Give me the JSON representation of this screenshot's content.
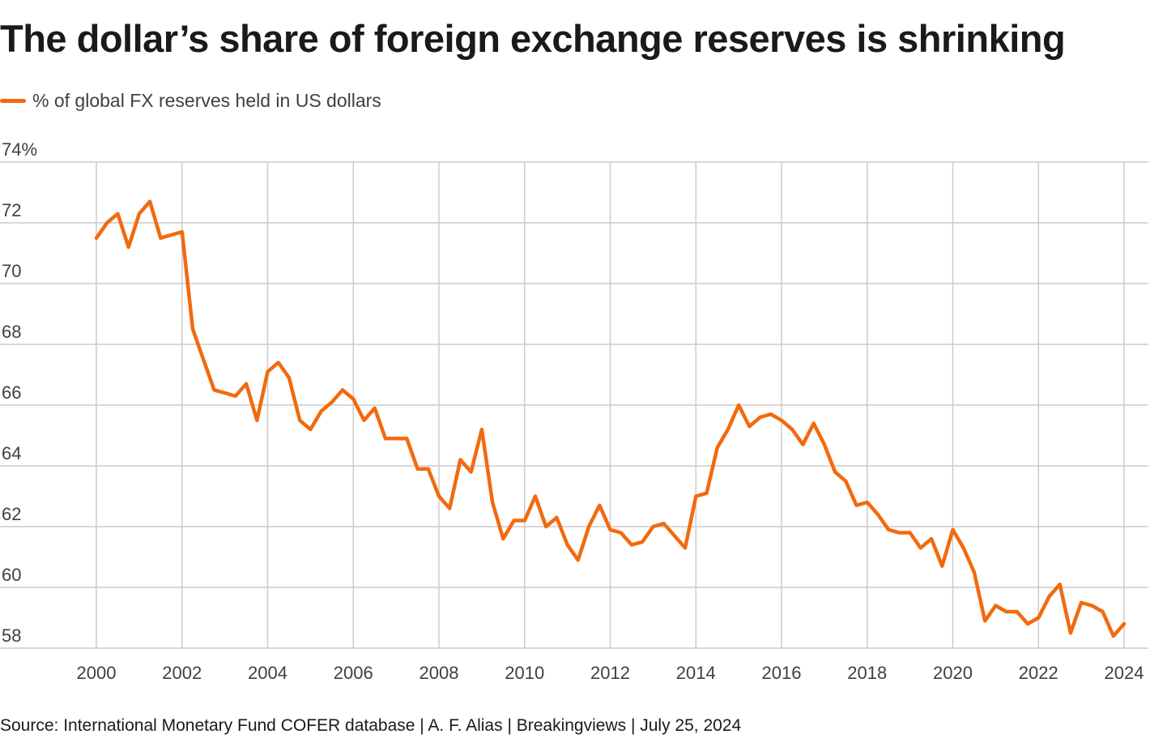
{
  "title": "The dollar’s share of foreign exchange reserves is shrinking",
  "source": "Source: International Monetary Fund COFER database | A. F. Alias | Breakingviews | July 25, 2024",
  "colors": {
    "series": "#f26a0f",
    "grid": "#cccccc",
    "text": "#1a1a1a",
    "muted": "#404040"
  },
  "chart_data": {
    "type": "line",
    "title": "The dollar’s share of foreign exchange reserves is shrinking",
    "xlabel": "",
    "ylabel": "",
    "xlim": [
      1999.4,
      2024.2
    ],
    "ylim": [
      58,
      74
    ],
    "x_ticks": [
      2000,
      2002,
      2004,
      2006,
      2008,
      2010,
      2012,
      2014,
      2016,
      2018,
      2020,
      2022,
      2024
    ],
    "x_tick_labels": [
      "2000",
      "2002",
      "2004",
      "2006",
      "2008",
      "2010",
      "2012",
      "2014",
      "2016",
      "2018",
      "2020",
      "2022",
      "2024"
    ],
    "y_ticks": [
      58,
      60,
      62,
      64,
      66,
      68,
      70,
      72,
      74
    ],
    "y_tick_labels": [
      "58",
      "60",
      "62",
      "64",
      "66",
      "68",
      "70",
      "72",
      "74%"
    ],
    "grid": true,
    "legend_position": "top-left",
    "series": [
      {
        "name": "% of global FX reserves held in US dollars",
        "x": [
          2000.0,
          2000.25,
          2000.5,
          2000.75,
          2001.0,
          2001.25,
          2001.5,
          2001.75,
          2002.0,
          2002.25,
          2002.5,
          2002.75,
          2003.0,
          2003.25,
          2003.5,
          2003.75,
          2004.0,
          2004.25,
          2004.5,
          2004.75,
          2005.0,
          2005.25,
          2005.5,
          2005.75,
          2006.0,
          2006.25,
          2006.5,
          2006.75,
          2007.0,
          2007.25,
          2007.5,
          2007.75,
          2008.0,
          2008.25,
          2008.5,
          2008.75,
          2009.0,
          2009.25,
          2009.5,
          2009.75,
          2010.0,
          2010.25,
          2010.5,
          2010.75,
          2011.0,
          2011.25,
          2011.5,
          2011.75,
          2012.0,
          2012.25,
          2012.5,
          2012.75,
          2013.0,
          2013.25,
          2013.5,
          2013.75,
          2014.0,
          2014.25,
          2014.5,
          2014.75,
          2015.0,
          2015.25,
          2015.5,
          2015.75,
          2016.0,
          2016.25,
          2016.5,
          2016.75,
          2017.0,
          2017.25,
          2017.5,
          2017.75,
          2018.0,
          2018.25,
          2018.5,
          2018.75,
          2019.0,
          2019.25,
          2019.5,
          2019.75,
          2020.0,
          2020.25,
          2020.5,
          2020.75,
          2021.0,
          2021.25,
          2021.5,
          2021.75,
          2022.0,
          2022.25,
          2022.5,
          2022.75,
          2023.0,
          2023.25,
          2023.5,
          2023.75,
          2024.0
        ],
        "values": [
          71.5,
          72.0,
          72.3,
          71.2,
          72.3,
          72.7,
          71.5,
          71.6,
          71.7,
          68.5,
          67.5,
          66.5,
          66.4,
          66.3,
          66.7,
          65.5,
          67.1,
          67.4,
          66.9,
          65.5,
          65.2,
          65.8,
          66.1,
          66.5,
          66.2,
          65.5,
          65.9,
          64.9,
          64.9,
          64.9,
          63.9,
          63.9,
          63.0,
          62.6,
          64.2,
          63.8,
          65.2,
          62.8,
          61.6,
          62.2,
          62.2,
          63.0,
          62.0,
          62.3,
          61.4,
          60.9,
          62.0,
          62.7,
          61.9,
          61.8,
          61.4,
          61.5,
          62.0,
          62.1,
          61.7,
          61.3,
          63.0,
          63.1,
          64.6,
          65.2,
          66.0,
          65.3,
          65.6,
          65.7,
          65.5,
          65.2,
          64.7,
          65.4,
          64.7,
          63.8,
          63.5,
          62.7,
          62.8,
          62.4,
          61.9,
          61.8,
          61.8,
          61.3,
          61.6,
          60.7,
          61.9,
          61.3,
          60.5,
          58.9,
          59.4,
          59.2,
          59.2,
          58.8,
          59.0,
          59.7,
          60.1,
          58.5,
          59.5,
          59.4,
          59.2,
          58.4,
          58.8
        ]
      }
    ]
  }
}
